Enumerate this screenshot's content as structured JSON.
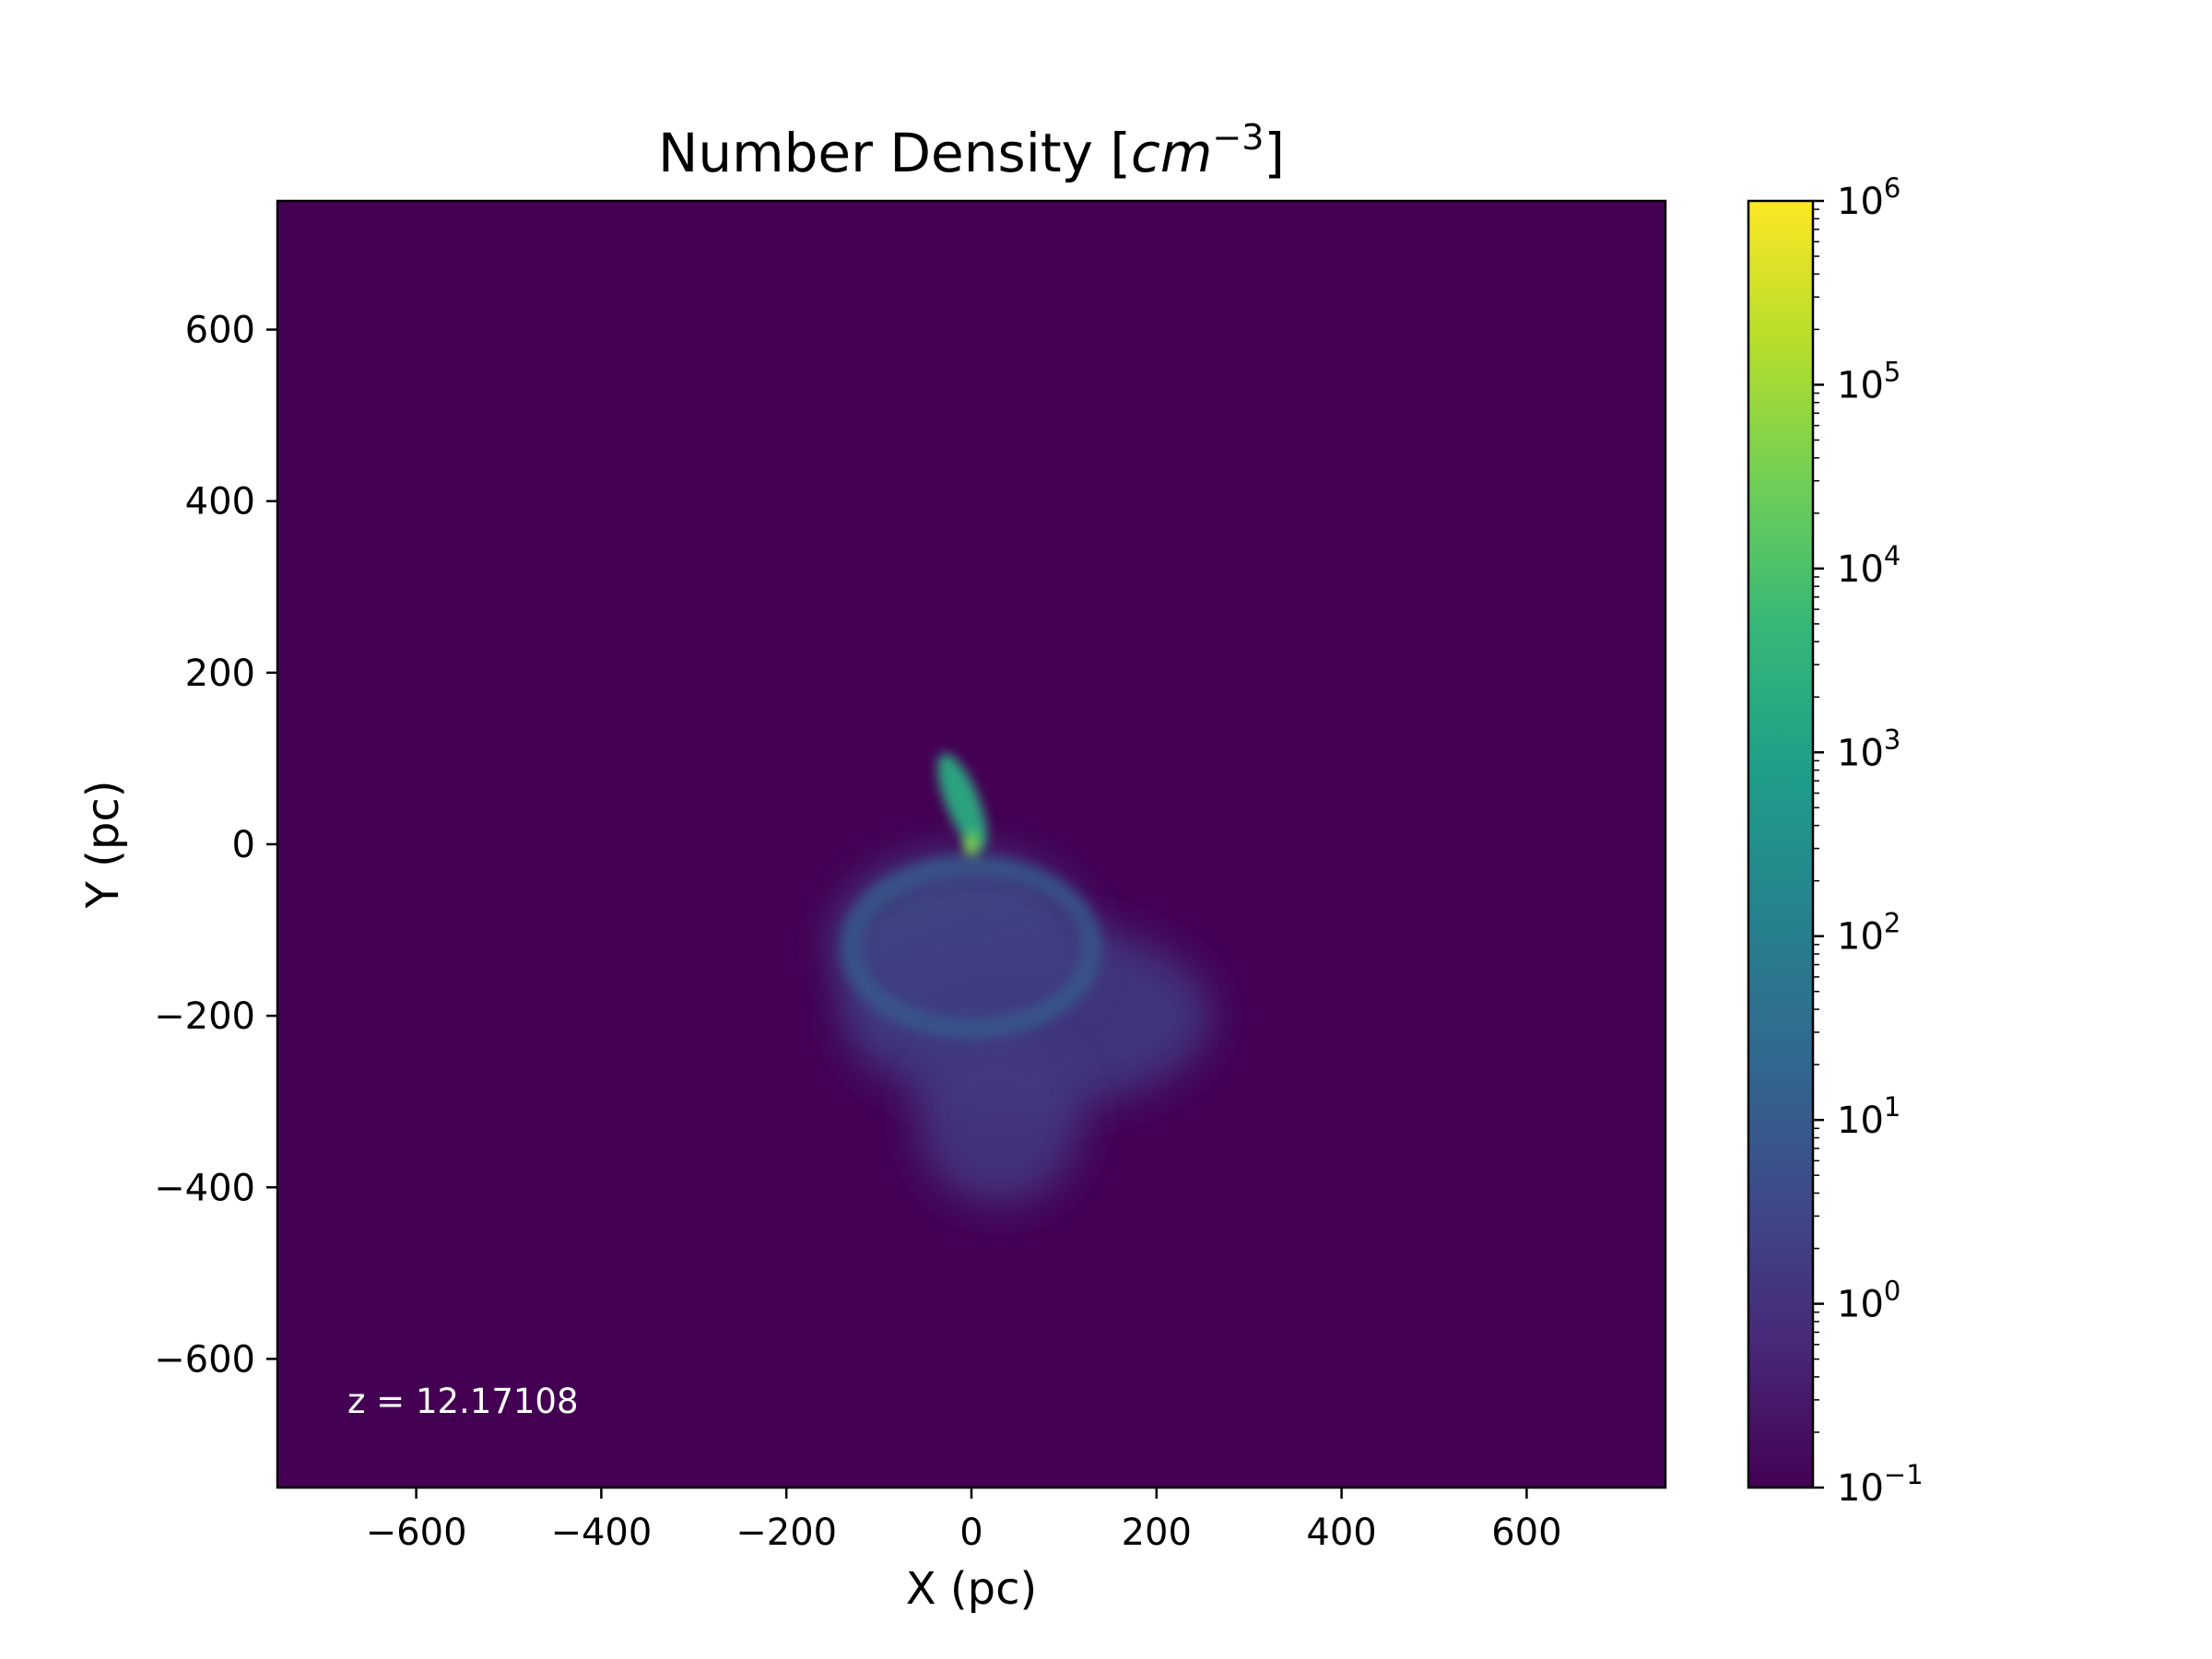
{
  "chart_data": {
    "type": "heatmap",
    "title_main": "Number Density [",
    "title_unit": "cm",
    "title_exp": "−3",
    "title_close": "]",
    "xlabel": "X (pc)",
    "ylabel": "Y (pc)",
    "xlim": [
      -750,
      750
    ],
    "ylim": [
      -750,
      750
    ],
    "xticks": [
      -600,
      -400,
      -200,
      0,
      200,
      400,
      600
    ],
    "yticks": [
      -600,
      -400,
      -200,
      0,
      200,
      400,
      600
    ],
    "xtick_labels": [
      "−600",
      "−400",
      "−200",
      "0",
      "200",
      "400",
      "600"
    ],
    "ytick_labels": [
      "−600",
      "−400",
      "−200",
      "0",
      "200",
      "400",
      "600"
    ],
    "colorbar": {
      "scale": "log",
      "colormap": "viridis",
      "range_exponent": [
        -1,
        6
      ],
      "tick_exponents": [
        -1,
        0,
        1,
        2,
        3,
        4,
        5,
        6
      ],
      "tick_exponent_labels": [
        "−1",
        "0",
        "1",
        "2",
        "3",
        "4",
        "5",
        "6"
      ],
      "tick_base": "10",
      "background_exponent": -1
    },
    "annotation": "z = 12.17108",
    "features": [
      {
        "kind": "diffuse-lobe",
        "x": -10,
        "y": -120,
        "rx": 140,
        "ry": 110,
        "log_density": 0.7
      },
      {
        "kind": "diffuse-lobe",
        "x": 60,
        "y": -200,
        "rx": 200,
        "ry": 110,
        "log_density": 0.3
      },
      {
        "kind": "diffuse-lobe",
        "x": 30,
        "y": -320,
        "rx": 90,
        "ry": 100,
        "log_density": 0.2
      },
      {
        "kind": "shell-ring",
        "x": 0,
        "y": -120,
        "rx": 130,
        "ry": 95,
        "log_density": 1.1
      },
      {
        "kind": "dense-filament",
        "x": -10,
        "y": 50,
        "rx": 18,
        "ry": 60,
        "log_density": 3.3
      },
      {
        "kind": "dense-core",
        "x": 0,
        "y": 0,
        "rx": 8,
        "ry": 14,
        "log_density": 4.6
      }
    ],
    "colors": {
      "viridis_stops": [
        "#440154",
        "#482878",
        "#3e4989",
        "#31688e",
        "#26828e",
        "#1f9e89",
        "#35b779",
        "#6ece58",
        "#b5de2b",
        "#fde725"
      ],
      "axis": "#000000",
      "annotation_text": "#ffffff"
    }
  }
}
